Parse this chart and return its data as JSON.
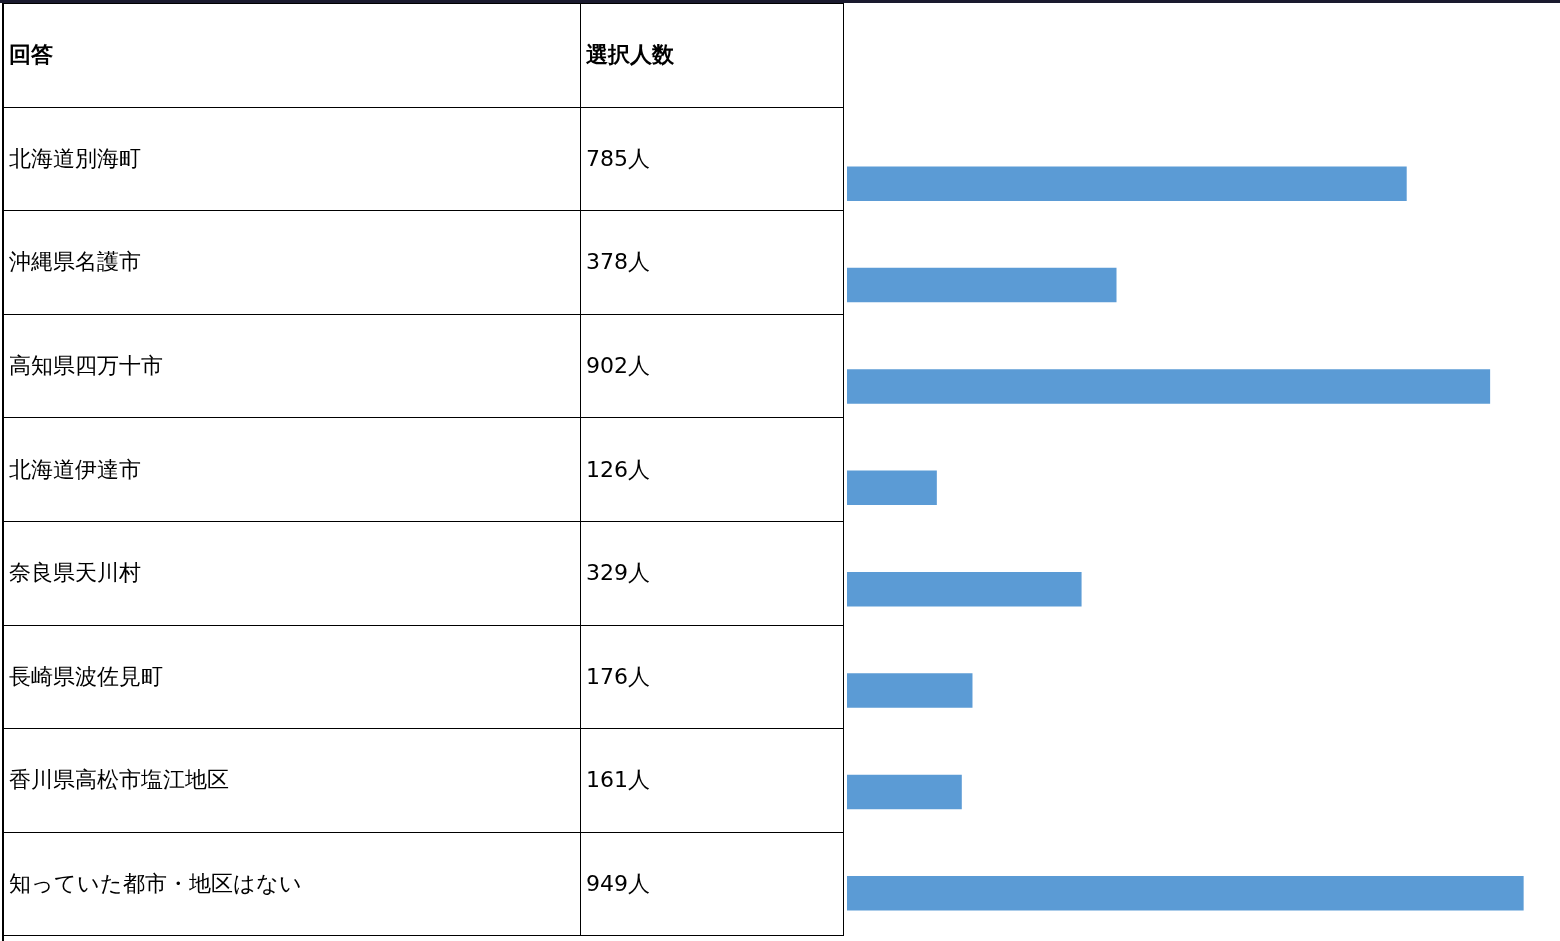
{
  "chart_data": {
    "type": "bar",
    "orientation": "horizontal",
    "ylabel": "回答",
    "xlabel": "選択人数",
    "categories": [
      "北海道別海町",
      "沖縄県名護市",
      "高知県四万十市",
      "北海道伊達市",
      "奈良県天川村",
      "長崎県波佐見町",
      "香川県高松市塩江地区",
      "知っていた都市・地区はない"
    ],
    "values": [
      785,
      378,
      902,
      126,
      329,
      176,
      161,
      949
    ],
    "value_labels": [
      "785人",
      "378人",
      "902人",
      "126人",
      "329人",
      "176人",
      "161人",
      "949人"
    ],
    "color": "#5b9bd5",
    "tick_labels": "y"
  }
}
